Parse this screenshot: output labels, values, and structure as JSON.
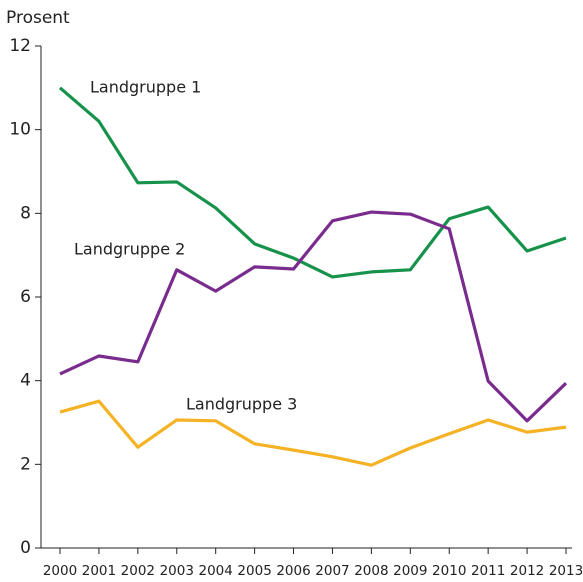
{
  "chart_data": {
    "type": "line",
    "y_label": "Prosent",
    "x": [
      2000,
      2001,
      2002,
      2003,
      2004,
      2005,
      2006,
      2007,
      2008,
      2009,
      2010,
      2011,
      2012,
      2013
    ],
    "xlim": [
      2000,
      2013
    ],
    "ylim": [
      0,
      12
    ],
    "yticks": [
      0,
      2,
      4,
      6,
      8,
      10,
      12
    ],
    "grid": false,
    "series": [
      {
        "name": "Landgruppe 1",
        "color": "#16924b",
        "values": [
          11.0,
          10.2,
          8.73,
          8.75,
          8.13,
          7.27,
          6.93,
          6.48,
          6.6,
          6.65,
          7.87,
          8.15,
          7.1,
          7.41
        ]
      },
      {
        "name": "Landgruppe 2",
        "color": "#7a2c8e",
        "values": [
          4.16,
          4.59,
          4.45,
          6.65,
          6.14,
          6.72,
          6.67,
          7.82,
          8.03,
          7.98,
          7.63,
          3.99,
          3.04,
          3.94
        ]
      },
      {
        "name": "Landgruppe 3",
        "color": "#f5b224",
        "values": [
          3.25,
          3.51,
          2.41,
          3.06,
          3.04,
          2.49,
          2.34,
          2.18,
          1.98,
          2.39,
          2.73,
          3.06,
          2.77,
          2.89
        ]
      }
    ]
  }
}
